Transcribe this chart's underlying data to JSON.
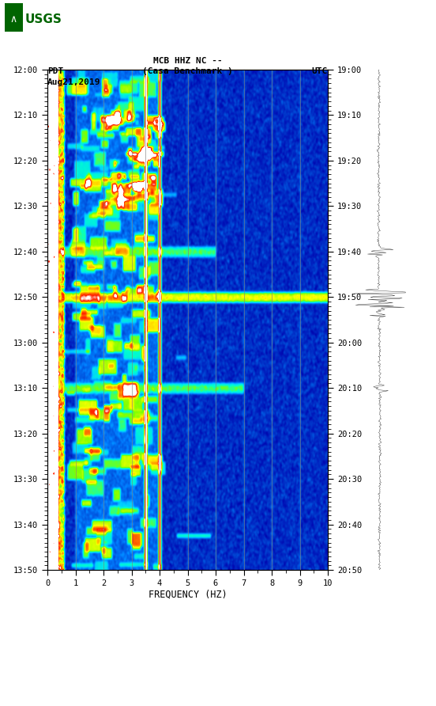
{
  "title_line1": "MCB HHZ NC --",
  "title_line2": "(Casa Benchmark )",
  "date_label": "Aug21,2019",
  "left_tz": "PDT",
  "right_tz": "UTC",
  "freq_min": 0,
  "freq_max": 10,
  "left_time_labels": [
    "12:00",
    "12:10",
    "12:20",
    "12:30",
    "12:40",
    "12:50",
    "13:00",
    "13:10",
    "13:20",
    "13:30",
    "13:40",
    "13:50"
  ],
  "right_time_labels": [
    "19:00",
    "19:10",
    "19:20",
    "19:30",
    "19:40",
    "19:50",
    "20:00",
    "20:10",
    "20:20",
    "20:30",
    "20:40",
    "20:50"
  ],
  "freq_ticks": [
    0,
    1,
    2,
    3,
    4,
    5,
    6,
    7,
    8,
    9,
    10
  ],
  "xlabel": "FREQUENCY (HZ)",
  "bg_color": "#ffffff",
  "seed": 42,
  "n_time": 660,
  "n_freq": 400
}
